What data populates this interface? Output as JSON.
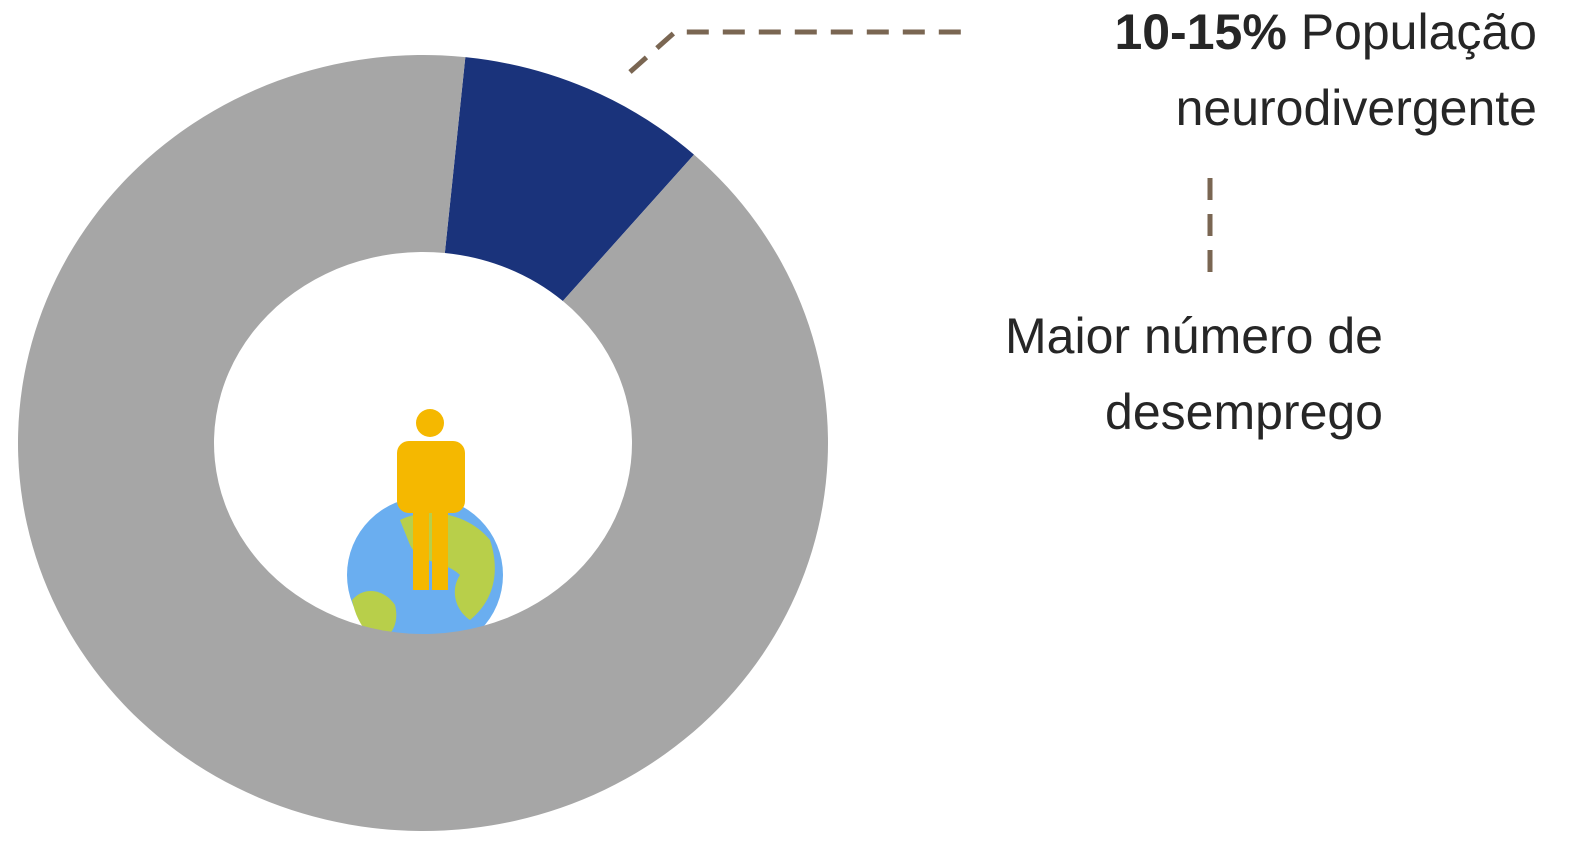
{
  "chart_data": {
    "type": "donut",
    "values": [
      10,
      90
    ],
    "colors": [
      "#1a337b",
      "#a6a6a6"
    ],
    "annotations": [
      {
        "bold": "10-15%",
        "text": "População neurodivergente"
      },
      {
        "text": "Maior número de desemprego"
      }
    ]
  }
}
